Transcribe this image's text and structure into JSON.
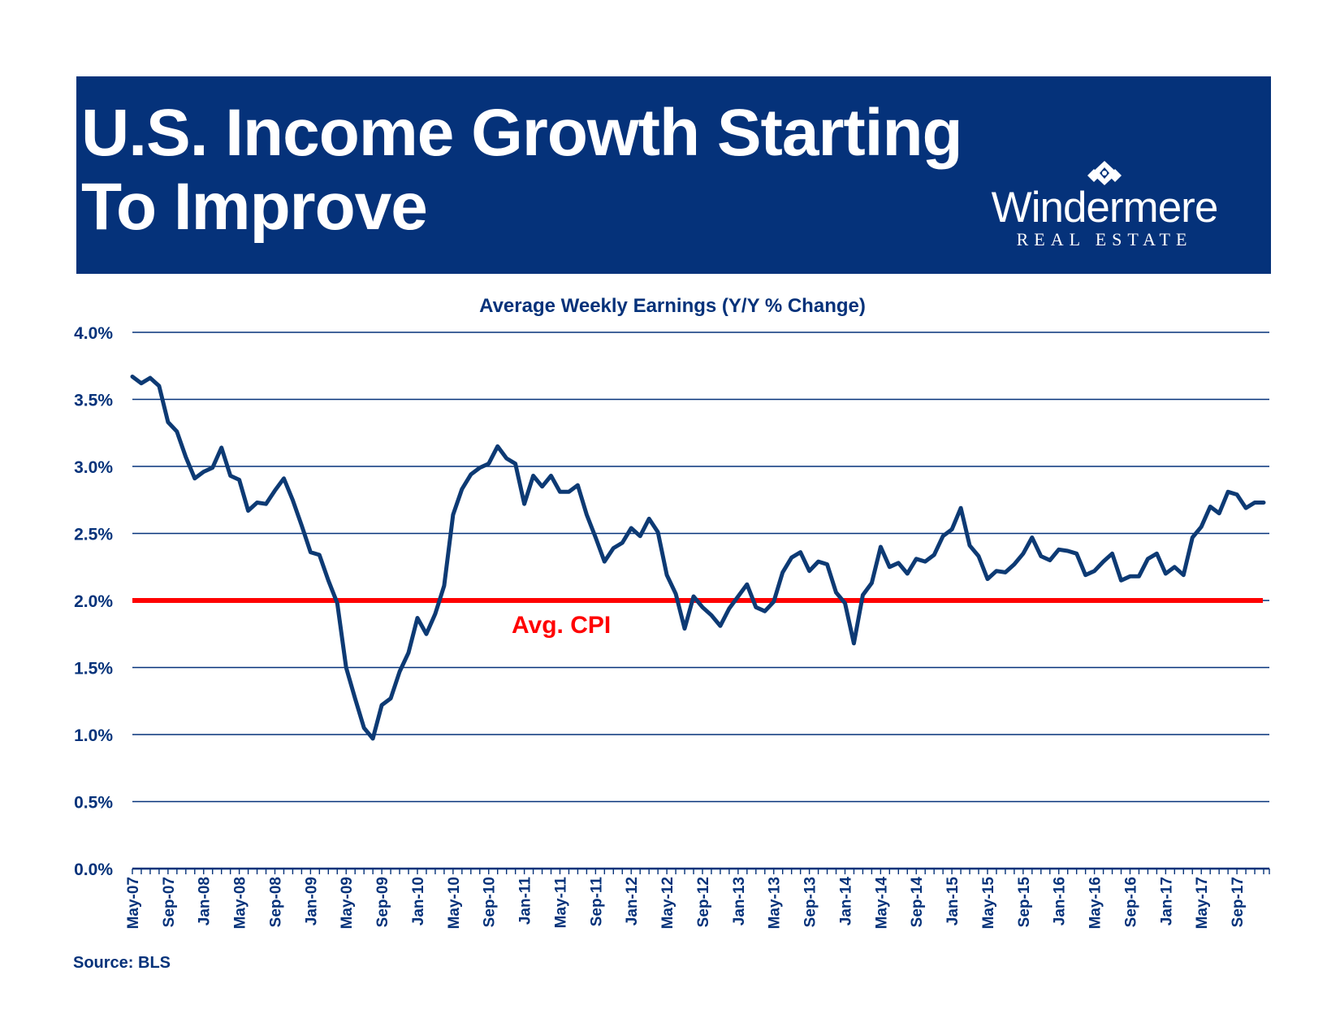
{
  "header": {
    "title_line1": "U.S. Income Growth Starting",
    "title_line2": "To Improve",
    "logo_name": "Windermere",
    "logo_sub": "REAL ESTATE"
  },
  "colors": {
    "banner": "#05327a",
    "series": "#0d3a74",
    "cpi": "#ff0000",
    "grid": "#05327a"
  },
  "source": "Source: BLS",
  "chart_data": {
    "type": "line",
    "title": "Average Weekly Earnings (Y/Y % Change)",
    "xlabel": "",
    "ylabel": "",
    "ylim": [
      0,
      4.0
    ],
    "yticks": [
      0,
      0.5,
      1.0,
      1.5,
      2.0,
      2.5,
      3.0,
      3.5,
      4.0
    ],
    "ytick_labels": [
      "0.0%",
      "0.5%",
      "1.0%",
      "1.5%",
      "2.0%",
      "2.5%",
      "3.0%",
      "3.5%",
      "4.0%"
    ],
    "grid": true,
    "x_tick_labels": [
      "May-07",
      "Sep-07",
      "Jan-08",
      "May-08",
      "Sep-08",
      "Jan-09",
      "May-09",
      "Sep-09",
      "Jan-10",
      "May-10",
      "Sep-10",
      "Jan-11",
      "May-11",
      "Sep-11",
      "Jan-12",
      "May-12",
      "Sep-12",
      "Jan-13",
      "May-13",
      "Sep-13",
      "Jan-14",
      "May-14",
      "Sep-14",
      "Jan-15",
      "May-15",
      "Sep-15",
      "Jan-16",
      "May-16",
      "Sep-16",
      "Jan-17",
      "May-17",
      "Sep-17"
    ],
    "x_start": "May-07",
    "x_end": "Dec-17",
    "reference_line": {
      "label": "Avg. CPI",
      "value": 2.0
    },
    "series": [
      {
        "x": [
          "May-07",
          "Jun-07",
          "Jul-07",
          "Aug-07",
          "Sep-07",
          "Oct-07",
          "Nov-07",
          "Dec-07",
          "Jan-08",
          "Feb-08",
          "Mar-08",
          "Apr-08",
          "May-08",
          "Jun-08",
          "Jul-08",
          "Aug-08",
          "Sep-08",
          "Oct-08",
          "Nov-08",
          "Dec-08",
          "Jan-09",
          "Feb-09",
          "Mar-09",
          "Apr-09",
          "May-09",
          "Jun-09",
          "Jul-09",
          "Aug-09",
          "Sep-09",
          "Oct-09",
          "Nov-09",
          "Dec-09",
          "Jan-10",
          "Feb-10",
          "Mar-10",
          "Apr-10",
          "May-10",
          "Jun-10",
          "Jul-10",
          "Aug-10",
          "Sep-10",
          "Oct-10",
          "Nov-10",
          "Dec-10",
          "Jan-11",
          "Feb-11",
          "Mar-11",
          "Apr-11",
          "May-11",
          "Jun-11",
          "Jul-11",
          "Aug-11",
          "Sep-11",
          "Oct-11",
          "Nov-11",
          "Dec-11",
          "Jan-12",
          "Feb-12",
          "Mar-12",
          "Apr-12",
          "May-12",
          "Jun-12",
          "Jul-12",
          "Aug-12",
          "Sep-12",
          "Oct-12",
          "Nov-12",
          "Dec-12",
          "Jan-13",
          "Feb-13",
          "Mar-13",
          "Apr-13",
          "May-13",
          "Jun-13",
          "Jul-13",
          "Aug-13",
          "Sep-13",
          "Oct-13",
          "Nov-13",
          "Dec-13",
          "Jan-14",
          "Feb-14",
          "Mar-14",
          "Apr-14",
          "May-14",
          "Jun-14",
          "Jul-14",
          "Aug-14",
          "Sep-14",
          "Oct-14",
          "Nov-14",
          "Dec-14",
          "Jan-15",
          "Feb-15",
          "Mar-15",
          "Apr-15",
          "May-15",
          "Jun-15",
          "Jul-15",
          "Aug-15",
          "Sep-15",
          "Oct-15",
          "Nov-15",
          "Dec-15",
          "Jan-16",
          "Feb-16",
          "Mar-16",
          "Apr-16",
          "May-16",
          "Jun-16",
          "Jul-16",
          "Aug-16",
          "Sep-16",
          "Oct-16",
          "Nov-16",
          "Dec-16",
          "Jan-17",
          "Feb-17",
          "Mar-17",
          "Apr-17",
          "May-17",
          "Jun-17",
          "Jul-17",
          "Aug-17",
          "Sep-17",
          "Oct-17",
          "Nov-17",
          "Dec-17"
        ],
        "values": [
          3.67,
          3.62,
          3.66,
          3.6,
          3.33,
          3.26,
          3.07,
          2.91,
          2.96,
          2.99,
          3.14,
          2.93,
          2.9,
          2.67,
          2.73,
          2.72,
          2.82,
          2.91,
          2.75,
          2.56,
          2.36,
          2.34,
          2.15,
          1.98,
          1.5,
          1.27,
          1.05,
          0.97,
          1.22,
          1.27,
          1.47,
          1.61,
          1.87,
          1.75,
          1.9,
          2.11,
          2.64,
          2.83,
          2.94,
          2.99,
          3.02,
          3.15,
          3.06,
          3.02,
          2.72,
          2.93,
          2.85,
          2.93,
          2.81,
          2.81,
          2.86,
          2.64,
          2.47,
          2.29,
          2.39,
          2.43,
          2.54,
          2.48,
          2.61,
          2.51,
          2.19,
          2.05,
          1.79,
          2.03,
          1.95,
          1.89,
          1.81,
          1.94,
          2.03,
          2.12,
          1.95,
          1.92,
          1.99,
          2.21,
          2.32,
          2.36,
          2.22,
          2.29,
          2.27,
          2.06,
          1.98,
          1.68,
          2.04,
          2.13,
          2.4,
          2.25,
          2.28,
          2.2,
          2.31,
          2.29,
          2.34,
          2.48,
          2.53,
          2.69,
          2.41,
          2.33,
          2.16,
          2.22,
          2.21,
          2.27,
          2.35,
          2.47,
          2.33,
          2.3,
          2.38,
          2.37,
          2.35,
          2.19,
          2.22,
          2.29,
          2.35,
          2.15,
          2.18,
          2.18,
          2.31,
          2.35,
          2.2,
          2.25,
          2.19,
          2.47,
          2.55,
          2.7,
          2.65,
          2.81,
          2.79,
          2.69,
          2.73,
          2.73
        ]
      }
    ]
  }
}
